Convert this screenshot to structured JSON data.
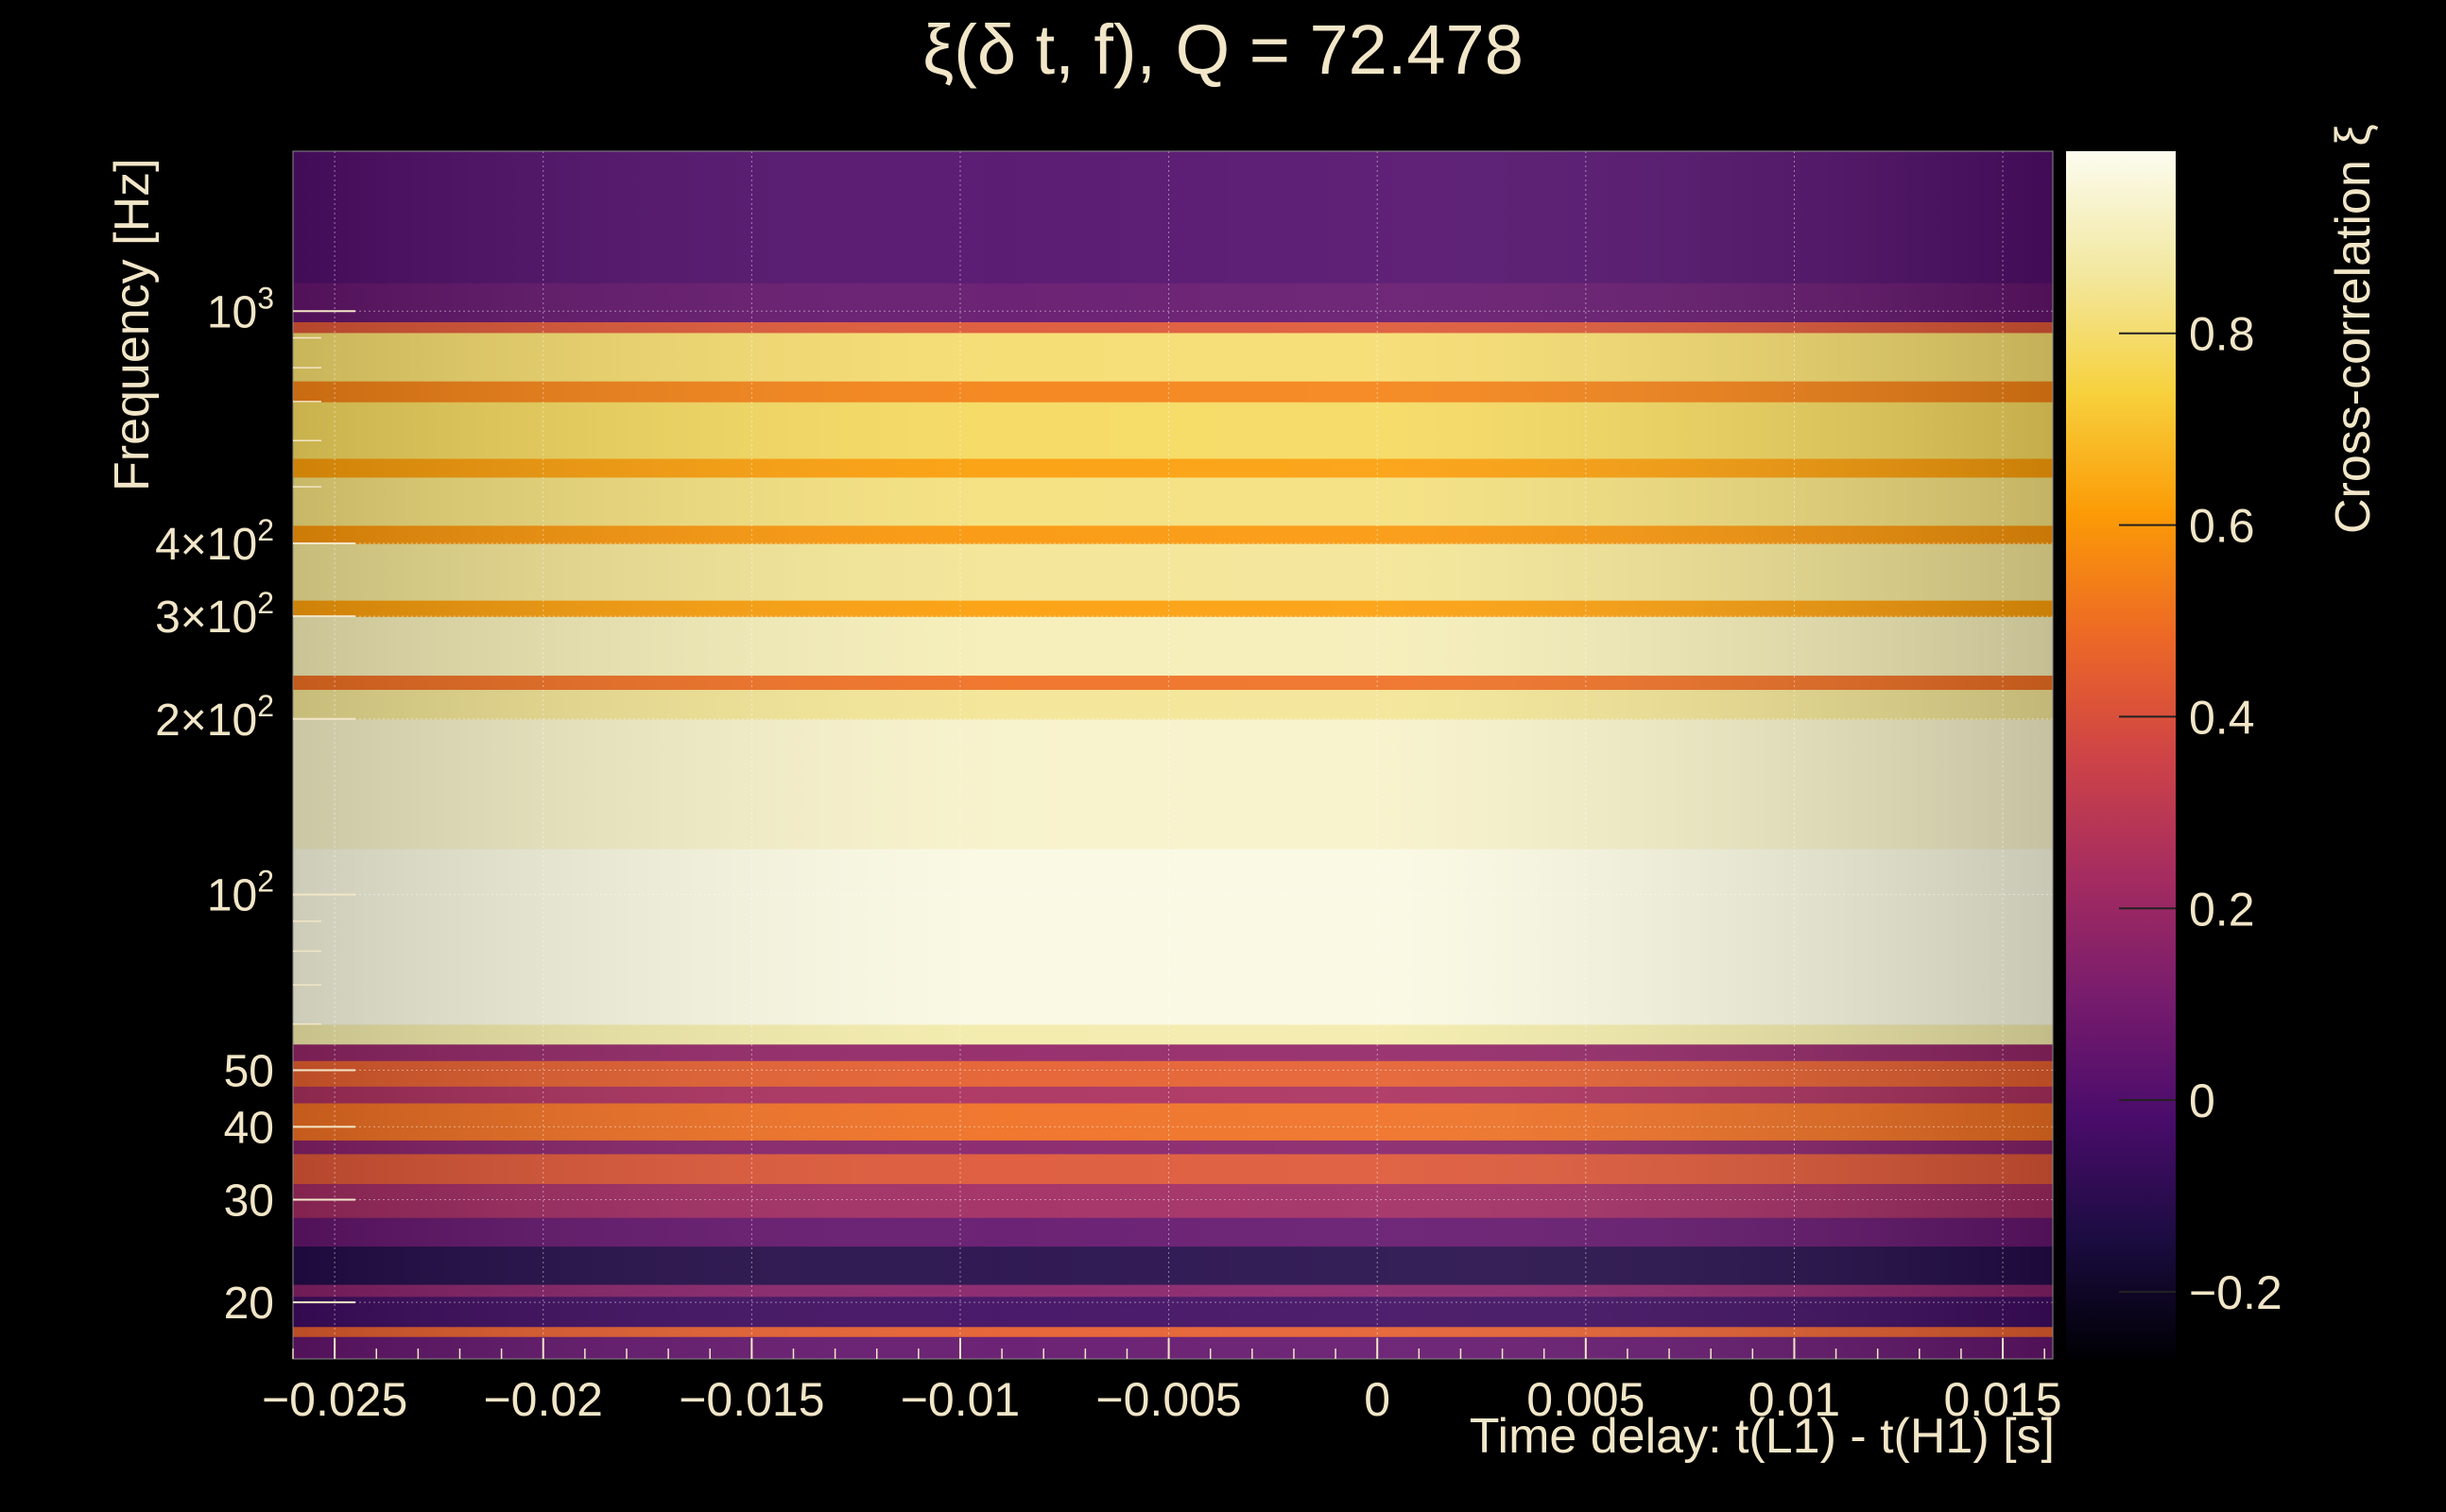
{
  "chart_data": {
    "type": "heatmap",
    "title": "ξ(δ t, f), Q = 72.478",
    "xlabel": "Time delay: t(L1) - t(H1) [s]",
    "ylabel": "Frequency [Hz]",
    "colorbar_label": "Cross-correlation ξ",
    "xlim": [
      -0.026,
      0.0162
    ],
    "ylim": [
      16,
      1880
    ],
    "yscale": "log",
    "x_ticks": [
      {
        "value": -0.025,
        "label": "−0.025"
      },
      {
        "value": -0.02,
        "label": "−0.02"
      },
      {
        "value": -0.015,
        "label": "−0.015"
      },
      {
        "value": -0.01,
        "label": "−0.01"
      },
      {
        "value": -0.005,
        "label": "−0.005"
      },
      {
        "value": 0,
        "label": "0"
      },
      {
        "value": 0.005,
        "label": "0.005"
      },
      {
        "value": 0.01,
        "label": "0.01"
      },
      {
        "value": 0.015,
        "label": "0.015"
      }
    ],
    "y_ticks": [
      {
        "value": 20,
        "base": "20",
        "exp": ""
      },
      {
        "value": 30,
        "base": "30",
        "exp": ""
      },
      {
        "value": 40,
        "base": "40",
        "exp": ""
      },
      {
        "value": 50,
        "base": "50",
        "exp": ""
      },
      {
        "value": 100,
        "base": "10",
        "exp": "2"
      },
      {
        "value": 200,
        "base": "2×10",
        "exp": "2"
      },
      {
        "value": 300,
        "base": "3×10",
        "exp": "2"
      },
      {
        "value": 400,
        "base": "4×10",
        "exp": "2"
      },
      {
        "value": 1000,
        "base": "10",
        "exp": "3"
      }
    ],
    "colorbar_range": [
      -0.27,
      0.99
    ],
    "colorbar_ticks": [
      {
        "value": -0.2,
        "label": "−0.2"
      },
      {
        "value": 0,
        "label": "0"
      },
      {
        "value": 0.2,
        "label": "0.2"
      },
      {
        "value": 0.4,
        "label": "0.4"
      },
      {
        "value": 0.6,
        "label": "0.6"
      },
      {
        "value": 0.8,
        "label": "0.8"
      }
    ],
    "colormap": "inferno",
    "grid": true,
    "frequency_bands": [
      {
        "f_low": 16,
        "f_high": 17.5,
        "xi": 0.05
      },
      {
        "f_low": 17.5,
        "f_high": 18.2,
        "xi": 0.45
      },
      {
        "f_low": 18.2,
        "f_high": 20.5,
        "xi": -0.05
      },
      {
        "f_low": 20.5,
        "f_high": 21.5,
        "xi": 0.15
      },
      {
        "f_low": 21.5,
        "f_high": 25,
        "xi": -0.12
      },
      {
        "f_low": 25,
        "f_high": 28,
        "xi": 0.05
      },
      {
        "f_low": 28,
        "f_high": 32,
        "xi": 0.22
      },
      {
        "f_low": 32,
        "f_high": 36,
        "xi": 0.42
      },
      {
        "f_low": 36,
        "f_high": 38,
        "xi": 0.15
      },
      {
        "f_low": 38,
        "f_high": 44,
        "xi": 0.5
      },
      {
        "f_low": 44,
        "f_high": 47,
        "xi": 0.25
      },
      {
        "f_low": 47,
        "f_high": 52,
        "xi": 0.45
      },
      {
        "f_low": 52,
        "f_high": 55.5,
        "xi": 0.18
      },
      {
        "f_low": 55.5,
        "f_high": 60,
        "xi": 0.88
      },
      {
        "f_low": 60,
        "f_high": 120,
        "xi": 0.97
      },
      {
        "f_low": 120,
        "f_high": 200,
        "xi": 0.93
      },
      {
        "f_low": 200,
        "f_high": 225,
        "xi": 0.85
      },
      {
        "f_low": 225,
        "f_high": 238,
        "xi": 0.5
      },
      {
        "f_low": 238,
        "f_high": 300,
        "xi": 0.9
      },
      {
        "f_low": 300,
        "f_high": 320,
        "xi": 0.62
      },
      {
        "f_low": 320,
        "f_high": 400,
        "xi": 0.85
      },
      {
        "f_low": 400,
        "f_high": 430,
        "xi": 0.6
      },
      {
        "f_low": 430,
        "f_high": 520,
        "xi": 0.82
      },
      {
        "f_low": 520,
        "f_high": 560,
        "xi": 0.62
      },
      {
        "f_low": 560,
        "f_high": 700,
        "xi": 0.78
      },
      {
        "f_low": 700,
        "f_high": 760,
        "xi": 0.55
      },
      {
        "f_low": 760,
        "f_high": 920,
        "xi": 0.8
      },
      {
        "f_low": 920,
        "f_high": 960,
        "xi": 0.42
      },
      {
        "f_low": 960,
        "f_high": 1120,
        "xi": 0.05
      },
      {
        "f_low": 1120,
        "f_high": 1880,
        "xi": 0.0
      }
    ]
  }
}
